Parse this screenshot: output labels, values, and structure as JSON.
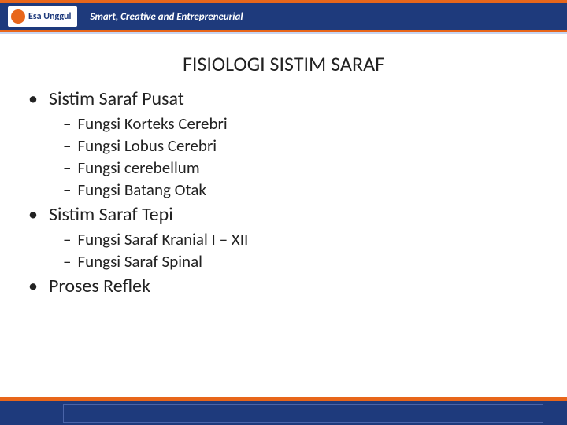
{
  "header": {
    "logo_name": "Esa Unggul",
    "tagline": "Smart, Creative and Entrepreneurial",
    "top_border_color": "#e8661a",
    "bg_color": "#1e3a7c",
    "logo_accent": "#e8661a"
  },
  "title": "FISIOLOGI SISTIM SARAF",
  "outline": [
    {
      "label": "Sistim Saraf Pusat",
      "children": [
        "Fungsi Korteks Cerebri",
        "Fungsi Lobus Cerebri",
        "Fungsi cerebellum",
        "Fungsi Batang Otak"
      ]
    },
    {
      "label": "Sistim Saraf Tepi",
      "children": [
        "Fungsi Saraf Kranial I – XII",
        "Fungsi Saraf Spinal"
      ]
    },
    {
      "label": "Proses Reflek",
      "children": []
    }
  ],
  "style": {
    "title_fontsize": 26,
    "l1_fontsize": 24,
    "l2_fontsize": 21,
    "text_color": "#222222",
    "bullet_char": "•",
    "dash_char": "–",
    "background_color": "#ffffff"
  },
  "footer": {
    "orange": "#e8661a",
    "blue": "#1e3a7c",
    "inset_border": "#4a64a8"
  }
}
